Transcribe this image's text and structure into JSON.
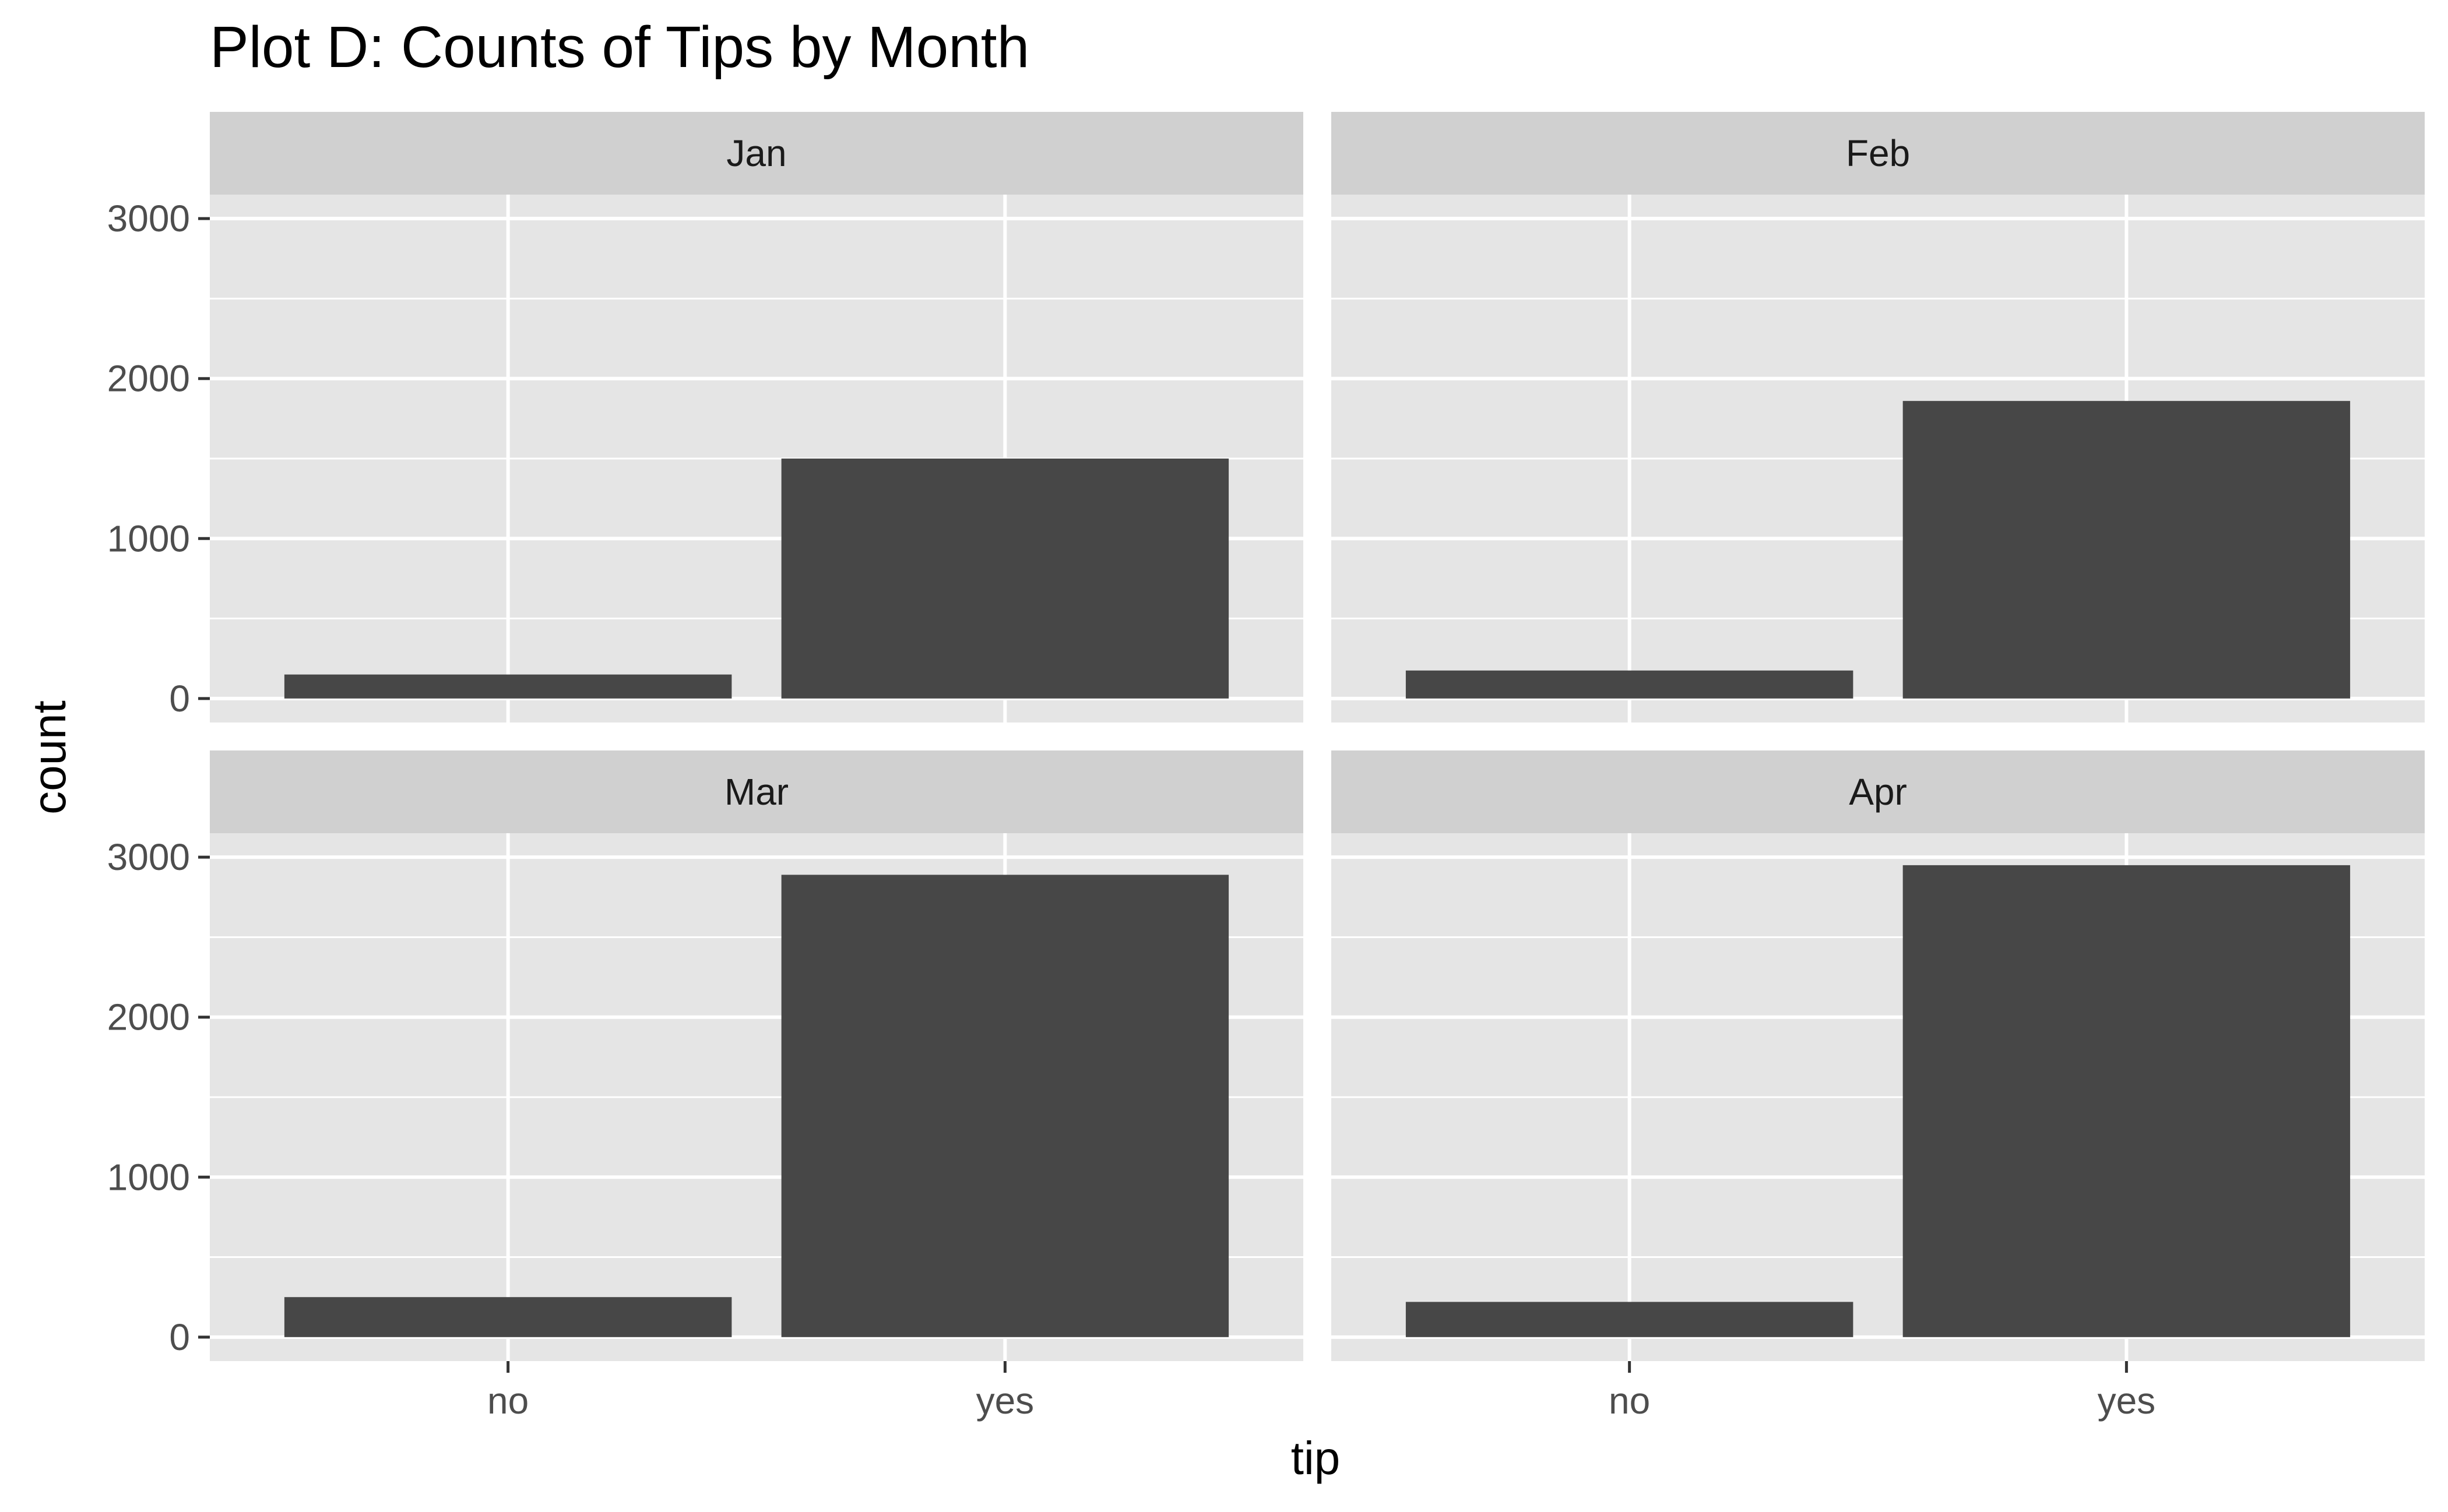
{
  "chart_data": {
    "type": "bar",
    "title": "Plot D: Counts of Tips by Month",
    "xlabel": "tip",
    "ylabel": "count",
    "categories": [
      "no",
      "yes"
    ],
    "ylim": [
      -150,
      3000
    ],
    "yticks": [
      0,
      1000,
      2000,
      3000
    ],
    "grid": true,
    "facet_layout": "2x2",
    "facets": [
      {
        "label": "Jan",
        "values": [
          150,
          1500
        ]
      },
      {
        "label": "Feb",
        "values": [
          175,
          1860
        ]
      },
      {
        "label": "Mar",
        "values": [
          250,
          2890
        ]
      },
      {
        "label": "Apr",
        "values": [
          220,
          2950
        ]
      }
    ]
  },
  "colors": {
    "panel_background": "#e5e5e5",
    "strip_background": "#d0d0d0",
    "grid_line": "#ffffff",
    "bar_fill": "#474747",
    "tick_mark": "#333333",
    "tick_label": "#4d4d4d"
  }
}
